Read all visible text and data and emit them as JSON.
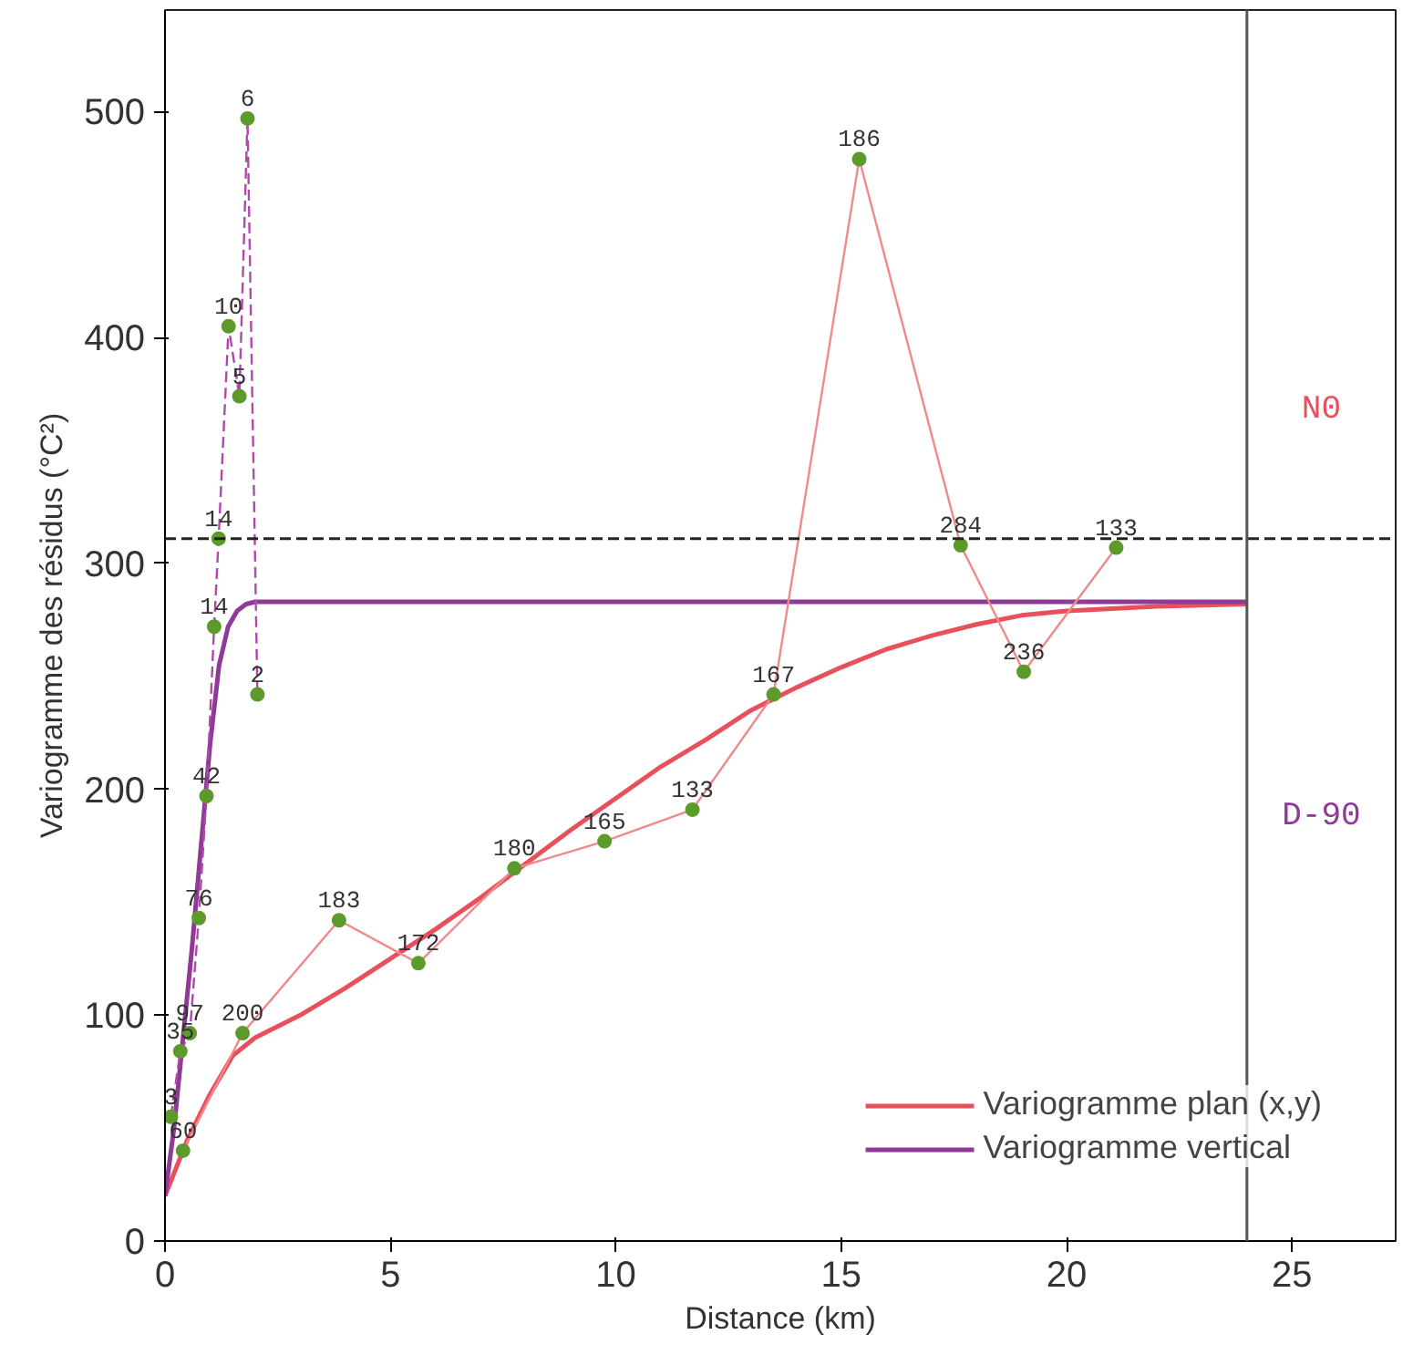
{
  "chart_data": {
    "type": "line",
    "xlabel": "Distance (km)",
    "ylabel": "Variogramme des résidus (°C²)",
    "xlim": [
      0,
      27.3
    ],
    "ylim": [
      0,
      545
    ],
    "xticks": [
      0,
      5,
      10,
      15,
      20,
      25
    ],
    "yticks": [
      0,
      100,
      200,
      300,
      400,
      500
    ],
    "grid": false,
    "legend": "bottom right",
    "series": [
      {
        "name": "Variogramme plan (x,y)",
        "color": "#e8505b",
        "x": [
          0,
          0.5,
          1,
          1.5,
          2,
          3,
          4,
          5,
          6,
          7,
          8,
          9,
          10,
          11,
          12,
          13,
          14,
          15,
          16,
          17,
          18,
          19,
          20,
          22,
          24
        ],
        "values": [
          20,
          45,
          65,
          82,
          90,
          100,
          112,
          125,
          138,
          152,
          167,
          182,
          196,
          210,
          222,
          235,
          245,
          254,
          262,
          268,
          273,
          277,
          279,
          281,
          282
        ]
      },
      {
        "name": "Variogramme vertical",
        "color": "#8e3a96",
        "x": [
          0,
          0.2,
          0.4,
          0.6,
          0.8,
          1.0,
          1.2,
          1.4,
          1.6,
          1.8,
          2,
          24
        ],
        "values": [
          20,
          50,
          90,
          130,
          175,
          220,
          255,
          272,
          279,
          282,
          283,
          283
        ]
      },
      {
        "color": "#f08a8a",
        "marker": "circle",
        "colors": [
          "#5c9a2c",
          "#5c9a2c",
          "#5c9a2c",
          "#5c9a2c",
          "#5c9a2c",
          "#5c9a2c",
          "#5c9a2c",
          "#5c9a2c",
          "#5c9a2c",
          "#5c9a2c",
          "#5c9a2c",
          "#5c9a2c"
        ],
        "x": [
          0.4,
          1.72,
          3.86,
          5.62,
          7.75,
          9.75,
          11.7,
          13.5,
          15.4,
          17.65,
          19.05,
          21.1
        ],
        "values": [
          40,
          92,
          142,
          123,
          165,
          177,
          191,
          242,
          479,
          308,
          252,
          307
        ]
      },
      {
        "color": "#b04aa8",
        "marker": "circle",
        "colors": [
          "#5c9a2c",
          "#5c9a2c",
          "#5c9a2c",
          "#5c9a2c",
          "#5c9a2c",
          "#5c9a2c",
          "#5c9a2c",
          "#5c9a2c",
          "#5c9a2c",
          "#5c9a2c",
          "#5c9a2c"
        ],
        "line_style": "dashed",
        "x": [
          0.13,
          0.34,
          0.55,
          0.75,
          0.92,
          1.09,
          1.19,
          1.41,
          1.65,
          1.83,
          2.05
        ],
        "values": [
          55,
          84,
          92,
          143,
          197,
          272,
          311,
          405,
          374,
          497,
          242
        ]
      }
    ],
    "ref_lines": [
      {
        "axis": "y",
        "value": 311,
        "color": "#222222",
        "line_style": "dashed"
      },
      {
        "axis": "x",
        "value": 24,
        "color": "#555555",
        "line_style": "solid"
      }
    ],
    "annotations": [
      "N0",
      "D-90",
      {
        "text": "60",
        "x": 0.4,
        "y": 40
      },
      {
        "text": "200",
        "x": 1.72,
        "y": 92
      },
      {
        "text": "183",
        "x": 3.86,
        "y": 142
      },
      {
        "text": "172",
        "x": 5.62,
        "y": 123
      },
      {
        "text": "180",
        "x": 7.75,
        "y": 165
      },
      {
        "text": "165",
        "x": 9.75,
        "y": 177
      },
      {
        "text": "133",
        "x": 11.7,
        "y": 191
      },
      {
        "text": "167",
        "x": 13.5,
        "y": 242
      },
      {
        "text": "186",
        "x": 15.4,
        "y": 479
      },
      {
        "text": "284",
        "x": 17.65,
        "y": 308
      },
      {
        "text": "236",
        "x": 19.05,
        "y": 252
      },
      {
        "text": "133",
        "x": 21.1,
        "y": 307
      },
      {
        "text": "3",
        "x": 0.13,
        "y": 55
      },
      {
        "text": "35",
        "x": 0.34,
        "y": 84
      },
      {
        "text": "97",
        "x": 0.55,
        "y": 92
      },
      {
        "text": "76",
        "x": 0.75,
        "y": 143
      },
      {
        "text": "42",
        "x": 0.92,
        "y": 197
      },
      {
        "text": "14",
        "x": 1.09,
        "y": 272
      },
      {
        "text": "14",
        "x": 1.19,
        "y": 311
      },
      {
        "text": "10",
        "x": 1.41,
        "y": 405
      },
      {
        "text": "5",
        "x": 1.65,
        "y": 374
      },
      {
        "text": "6",
        "x": 1.83,
        "y": 497
      },
      {
        "text": "2",
        "x": 2.05,
        "y": 242
      }
    ]
  }
}
